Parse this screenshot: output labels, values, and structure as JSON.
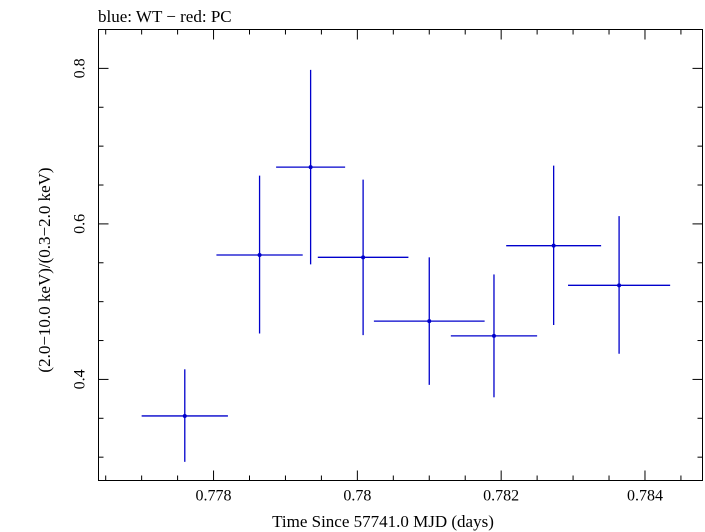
{
  "chart_data": {
    "type": "scatter",
    "title": "blue: WT − red: PC",
    "xlabel": "Time Since 57741.0 MJD (days)",
    "ylabel": "(2.0−10.0 keV)/(0.3−2.0 keV)",
    "xlim": [
      0.7764,
      0.7848
    ],
    "ylim": [
      0.27,
      0.85
    ],
    "xticks": [
      {
        "value": 0.778,
        "label": "0.778"
      },
      {
        "value": 0.78,
        "label": "0.78"
      },
      {
        "value": 0.782,
        "label": "0.782"
      },
      {
        "value": 0.784,
        "label": "0.784"
      }
    ],
    "yticks": [
      {
        "value": 0.4,
        "label": "0.4"
      },
      {
        "value": 0.6,
        "label": "0.6"
      },
      {
        "value": 0.8,
        "label": "0.8"
      }
    ],
    "grid": false,
    "series": [
      {
        "color": "#0000cc",
        "points": [
          {
            "x": 0.7776,
            "xerr": 0.0006,
            "y": 0.353,
            "yerr_low": 0.059,
            "yerr_high": 0.06
          },
          {
            "x": 0.77864,
            "xerr": 0.0006,
            "y": 0.56,
            "yerr_low": 0.101,
            "yerr_high": 0.102
          },
          {
            "x": 0.77935,
            "xerr": 0.00048,
            "y": 0.673,
            "yerr_low": 0.125,
            "yerr_high": 0.125
          },
          {
            "x": 0.78008,
            "xerr": 0.00063,
            "y": 0.557,
            "yerr_low": 0.1,
            "yerr_high": 0.1
          },
          {
            "x": 0.781,
            "xerr": 0.00077,
            "y": 0.475,
            "yerr_low": 0.082,
            "yerr_high": 0.082
          },
          {
            "x": 0.7819,
            "xerr": 0.0006,
            "y": 0.456,
            "yerr_low": 0.079,
            "yerr_high": 0.079
          },
          {
            "x": 0.78273,
            "xerr": 0.00066,
            "y": 0.572,
            "yerr_low": 0.102,
            "yerr_high": 0.103
          },
          {
            "x": 0.78364,
            "xerr": 0.00071,
            "y": 0.521,
            "yerr_low": 0.088,
            "yerr_high": 0.089
          }
        ]
      }
    ]
  }
}
